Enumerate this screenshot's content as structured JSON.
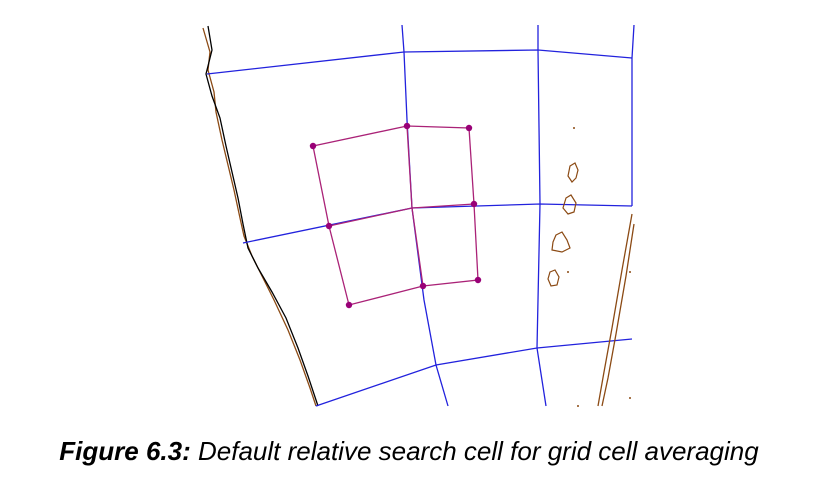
{
  "caption": {
    "label": "Figure 6.3:",
    "text": " Default relative search cell for grid cell averaging"
  },
  "colors": {
    "grid_lines": "#2222dd",
    "search_cell": "#aa2277",
    "search_points": "#990077",
    "coastline_brown": "#8b4a14",
    "coastline_black": "#000000",
    "background": "#ffffff"
  }
}
